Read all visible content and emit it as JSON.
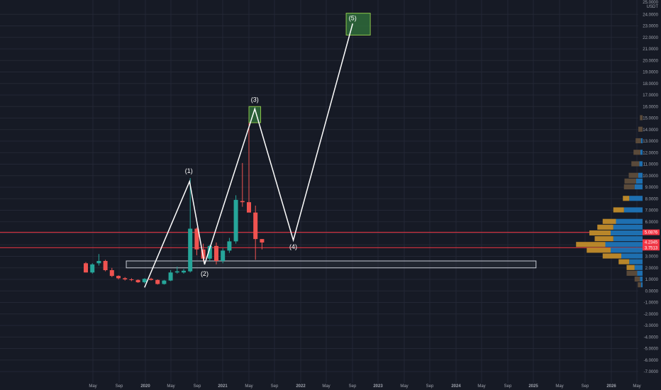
{
  "chart_data": {
    "type": "candlestick",
    "currency_label": "USDT",
    "y_top_label": "25.0000",
    "ylim": [
      -7.5,
      25.2
    ],
    "y_ticks": [
      "24.0000",
      "23.0000",
      "22.0000",
      "21.0000",
      "20.0000",
      "19.0000",
      "18.0000",
      "17.0000",
      "16.0000",
      "15.0000",
      "14.0000",
      "13.0000",
      "12.0000",
      "11.0000",
      "10.0000",
      "9.0000",
      "8.0000",
      "7.0000",
      "6.0000",
      "5.0000",
      "4.0000",
      "3.0000",
      "2.0000",
      "1.0000",
      "0.0000",
      "-1.0000",
      "-2.0000",
      "-3.0000",
      "-4.0000",
      "-5.0000",
      "-6.0000",
      "-7.0000"
    ],
    "x_ticks": [
      "May",
      "Sep",
      "2020",
      "May",
      "Sep",
      "2021",
      "May",
      "Sep",
      "2022",
      "May",
      "Sep",
      "2023",
      "May",
      "Sep",
      "2024",
      "May",
      "Sep",
      "2025",
      "May",
      "Sep",
      "2026",
      "May"
    ],
    "candles": [
      {
        "open": 2.4,
        "high": 2.5,
        "low": 1.6,
        "close": 1.6
      },
      {
        "open": 1.6,
        "high": 2.4,
        "low": 1.5,
        "close": 2.3
      },
      {
        "open": 2.4,
        "high": 3.2,
        "low": 2.2,
        "close": 2.6
      },
      {
        "open": 2.6,
        "high": 2.7,
        "low": 1.7,
        "close": 1.8
      },
      {
        "open": 1.8,
        "high": 2.0,
        "low": 1.2,
        "close": 1.3
      },
      {
        "open": 1.3,
        "high": 1.35,
        "low": 1.0,
        "close": 1.1
      },
      {
        "open": 1.1,
        "high": 1.2,
        "low": 0.9,
        "close": 1.0
      },
      {
        "open": 1.0,
        "high": 1.1,
        "low": 0.85,
        "close": 0.95
      },
      {
        "open": 0.95,
        "high": 1.0,
        "low": 0.7,
        "close": 0.75
      },
      {
        "open": 0.75,
        "high": 1.1,
        "low": 0.65,
        "close": 1.05
      },
      {
        "open": 1.05,
        "high": 1.15,
        "low": 0.9,
        "close": 0.95
      },
      {
        "open": 0.95,
        "high": 1.0,
        "low": 0.55,
        "close": 0.6
      },
      {
        "open": 0.6,
        "high": 0.95,
        "low": 0.55,
        "close": 0.9
      },
      {
        "open": 0.9,
        "high": 1.8,
        "low": 0.85,
        "close": 1.6
      },
      {
        "open": 1.6,
        "high": 2.1,
        "low": 1.5,
        "close": 1.7
      },
      {
        "open": 1.6,
        "high": 1.9,
        "low": 1.5,
        "close": 1.75
      },
      {
        "open": 1.7,
        "high": 9.8,
        "low": 1.6,
        "close": 5.4
      },
      {
        "open": 5.4,
        "high": 5.5,
        "low": 3.1,
        "close": 3.6
      },
      {
        "open": 3.6,
        "high": 4.1,
        "low": 2.6,
        "close": 2.8
      },
      {
        "open": 2.8,
        "high": 4.0,
        "low": 2.6,
        "close": 3.9
      },
      {
        "open": 3.9,
        "high": 4.2,
        "low": 2.3,
        "close": 2.6
      },
      {
        "open": 2.6,
        "high": 3.7,
        "low": 2.4,
        "close": 3.5
      },
      {
        "open": 3.5,
        "high": 4.6,
        "low": 3.3,
        "close": 4.3
      },
      {
        "open": 4.3,
        "high": 8.3,
        "low": 4.1,
        "close": 7.9
      },
      {
        "open": 7.8,
        "high": 11.1,
        "low": 7.3,
        "close": 7.7
      },
      {
        "open": 7.7,
        "high": 15.9,
        "low": 6.9,
        "close": 6.8
      },
      {
        "open": 6.8,
        "high": 7.4,
        "low": 2.7,
        "close": 4.5
      },
      {
        "open": 4.5,
        "high": 4.5,
        "low": 3.6,
        "close": 4.2
      }
    ],
    "wave_path": [
      {
        "label": "",
        "t": 9.0,
        "price": 0.3
      },
      {
        "label": "(1)",
        "t": 15.9,
        "price": 9.5
      },
      {
        "label": "(2)",
        "t": 18.2,
        "price": 2.3
      },
      {
        "label": "(3)",
        "t": 25.9,
        "price": 15.8
      },
      {
        "label": "(4)",
        "t": 31.8,
        "price": 4.4
      },
      {
        "label": "(5)",
        "t": 40.9,
        "price": 23.2
      }
    ],
    "target_zones": [
      {
        "t_start": 25.0,
        "t_end": 26.8,
        "price_low": 14.6,
        "price_high": 16.0,
        "label": "(3)"
      },
      {
        "t_start": 39.9,
        "t_end": 43.6,
        "price_low": 22.2,
        "price_high": 24.1,
        "label": "(5)"
      }
    ],
    "support_zone": {
      "t_start": 6.2,
      "t_end": 69.0,
      "price_low": 2.0,
      "price_high": 2.6
    },
    "horizontal_lines": [
      {
        "price": 5.0876,
        "color": "#f23645"
      },
      {
        "price": 3.7513,
        "color": "#f23645"
      }
    ],
    "price_tags": [
      {
        "price": 5.0876,
        "text": "5.0876",
        "color": "#f23645"
      },
      {
        "price": 4.2345,
        "text": "4.2345",
        "color": "#f23645"
      },
      {
        "price": 3.7513,
        "text": "3.7513",
        "color": "#f23645"
      }
    ],
    "volume_profile": [
      {
        "price": 15.0,
        "up": 0.0,
        "down": 0.05
      },
      {
        "price": 14.0,
        "up": 0.0,
        "down": 0.08
      },
      {
        "price": 13.0,
        "up": 0.03,
        "down": 0.1
      },
      {
        "price": 12.0,
        "up": 0.04,
        "down": 0.13
      },
      {
        "price": 11.0,
        "up": 0.06,
        "down": 0.15
      },
      {
        "price": 10.0,
        "up": 0.08,
        "down": 0.18
      },
      {
        "price": 9.5,
        "up": 0.12,
        "down": 0.22
      },
      {
        "price": 9.0,
        "up": 0.15,
        "down": 0.2
      },
      {
        "price": 8.0,
        "up": 0.25,
        "down": 0.12
      },
      {
        "price": 7.0,
        "up": 0.35,
        "down": 0.2
      },
      {
        "price": 6.0,
        "up": 0.5,
        "down": 0.25
      },
      {
        "price": 5.5,
        "up": 0.55,
        "down": 0.3
      },
      {
        "price": 5.0,
        "up": 0.6,
        "down": 0.4
      },
      {
        "price": 4.5,
        "up": 0.55,
        "down": 0.35
      },
      {
        "price": 4.0,
        "up": 0.7,
        "down": 0.55
      },
      {
        "price": 3.5,
        "up": 0.6,
        "down": 0.45
      },
      {
        "price": 3.0,
        "up": 0.4,
        "down": 0.35
      },
      {
        "price": 2.5,
        "up": 0.25,
        "down": 0.2
      },
      {
        "price": 2.0,
        "up": 0.15,
        "down": 0.15
      },
      {
        "price": 1.5,
        "up": 0.1,
        "down": 0.2
      },
      {
        "price": 1.0,
        "up": 0.05,
        "down": 0.1
      },
      {
        "price": 0.5,
        "up": 0.03,
        "down": 0.06
      }
    ],
    "colors": {
      "background": "#161a25",
      "grid": "#232735",
      "up": "#26a69a",
      "down": "#ef5350",
      "wave": "#ffffff",
      "target_fill": "#2e6b3a",
      "target_stroke": "#8bc34a",
      "support_fill": "#2a2e39",
      "support_stroke": "#c8ccd6",
      "profile_up": "#1e6fb0",
      "profile_down": "#b8862a",
      "profile_muted": "#5a4a3a"
    }
  }
}
